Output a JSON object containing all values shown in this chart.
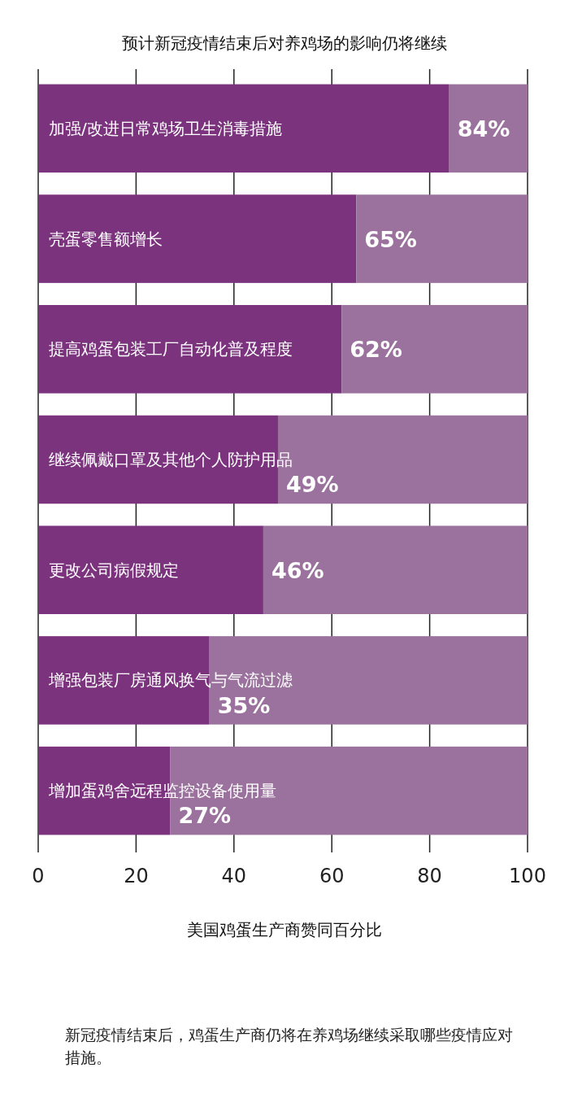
{
  "chart_data": {
    "type": "bar",
    "orientation": "horizontal",
    "stacked": true,
    "title": "预计新冠疫情结束后对养鸡场的影响仍将继续",
    "xlabel": "美国鸡蛋生产商赞同百分比",
    "categories": [
      "加强/改进日常鸡场卫生消毒措施",
      "壳蛋零售额增长",
      "提高鸡蛋包装工厂自动化普及程度",
      "继续佩戴口罩及其他个人防护用品",
      "更改公司病假规定",
      "增强包装厂房通风换气与气流过滤",
      "增加蛋鸡舍远程监控设备使用量"
    ],
    "series": [
      {
        "color": "#7b337e",
        "values": [
          84,
          65,
          62,
          49,
          46,
          35,
          27
        ],
        "value_labels": [
          "84%",
          "65%",
          "62%",
          "49%",
          "46%",
          "35%",
          "27%"
        ]
      },
      {
        "color": "#9b729e",
        "values": [
          16,
          35,
          38,
          51,
          54,
          65,
          73
        ]
      }
    ],
    "xlim": [
      0,
      100
    ],
    "xticks": [
      0,
      20,
      40,
      60,
      80,
      100
    ],
    "grid": "x",
    "annotations": [
      "新冠疫情结束后，鸡蛋生产商仍将在养鸡场继续采取哪些疫情应对措施。"
    ]
  }
}
